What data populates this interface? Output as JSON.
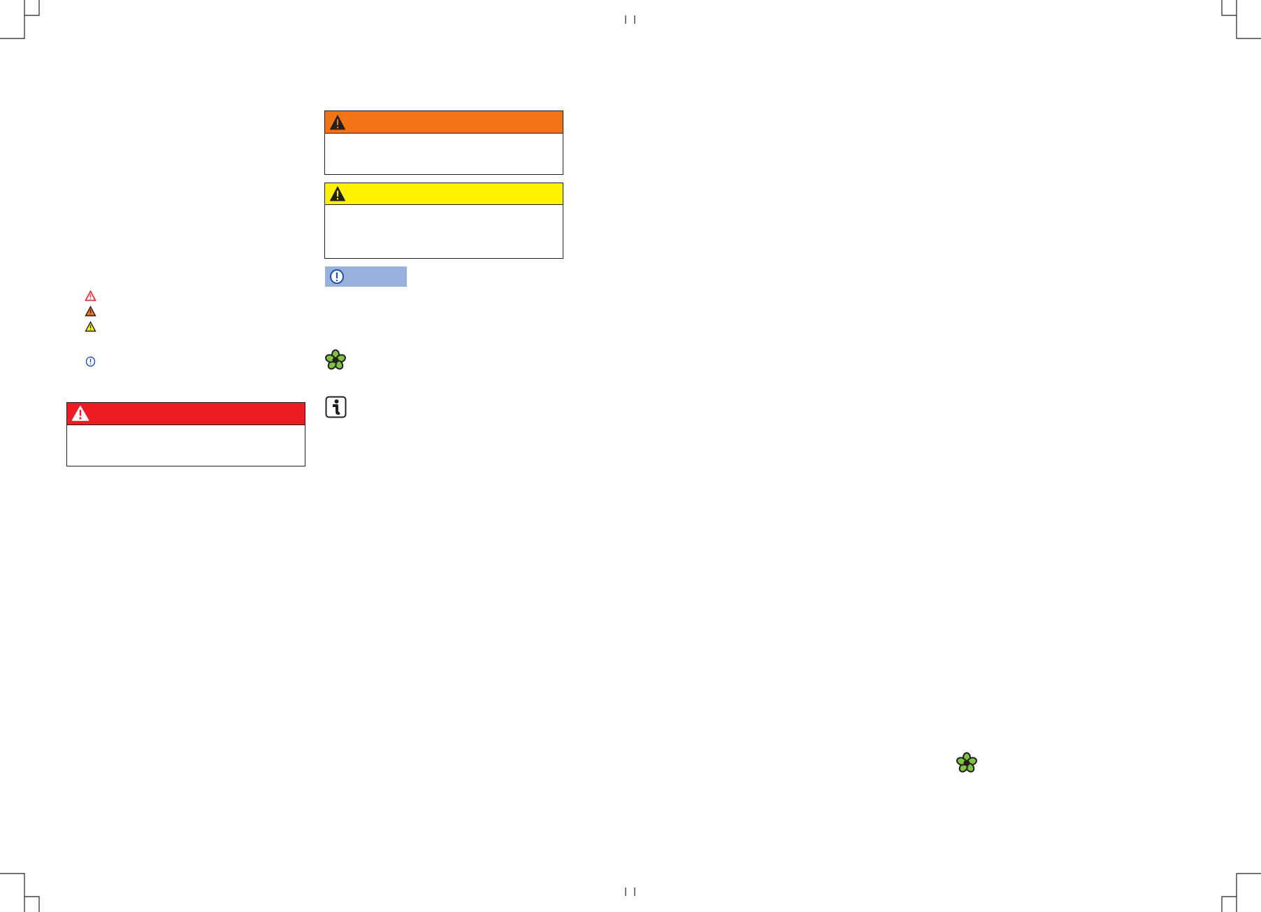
{
  "colors": {
    "danger": "#ed1c24",
    "warning": "#f37317",
    "caution": "#fff200",
    "notice": "#98b0dc",
    "notice_icon": "#1f4fa8",
    "environment": "#7dc242",
    "border": "#231f20"
  },
  "legend_icons": [
    "danger-triangle-outline-icon",
    "warning-triangle-orange-icon",
    "caution-triangle-yellow-icon",
    "notice-exclamation-circle-icon"
  ],
  "boxes": {
    "warning": {
      "icon": "warning-triangle-icon"
    },
    "caution": {
      "icon": "caution-triangle-icon"
    },
    "notice": {
      "icon": "notice-exclamation-circle-icon"
    },
    "danger": {
      "icon": "danger-triangle-icon"
    }
  },
  "side_icons": [
    "environment-flower-icon",
    "info-icon",
    "environment-flower-icon"
  ]
}
